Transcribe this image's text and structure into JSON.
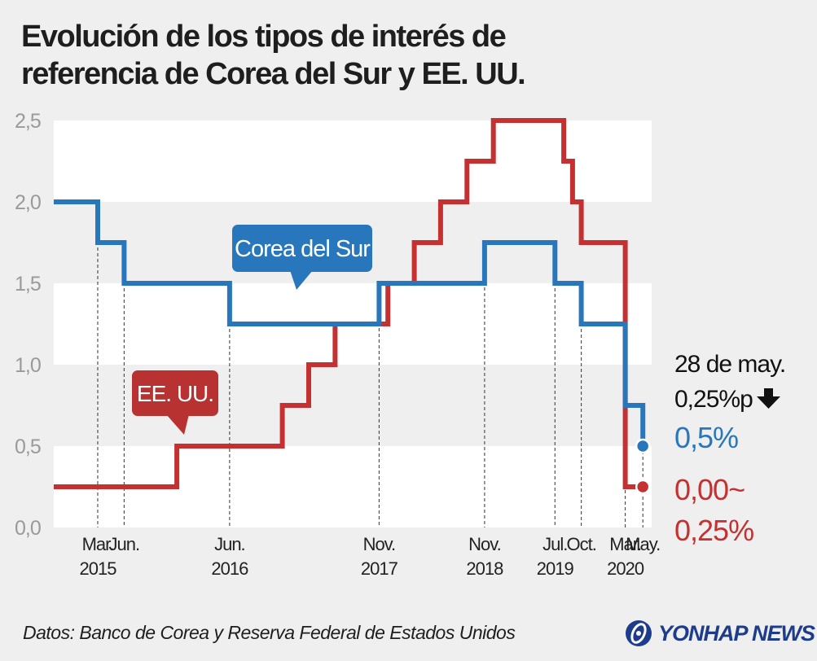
{
  "title_lines": [
    "Evolución de los tipos de interés de",
    "referencia de Corea del Sur y EE. UU."
  ],
  "source": "Datos: Banco de Corea y Reserva Federal de Estados Unidos",
  "logo_text": "YONHAP NEWS",
  "colors": {
    "korea": "#2877bd",
    "usa": "#c53030",
    "band": "#ffffff",
    "background": "#efefef",
    "axis_text": "#9a9a9a"
  },
  "chart_data": {
    "type": "line",
    "step": true,
    "x_range": [
      "2014-10",
      "2020-06"
    ],
    "ylim": [
      0,
      2.5
    ],
    "y_ticks": [
      {
        "value": 0,
        "label": "0,0"
      },
      {
        "value": 0.5,
        "label": "0,5"
      },
      {
        "value": 1.0,
        "label": "1,0"
      },
      {
        "value": 1.5,
        "label": "1,5"
      },
      {
        "value": 2.0,
        "label": "2,0"
      },
      {
        "value": 2.5,
        "label": "2,5"
      }
    ],
    "x_ticks": [
      {
        "date": "2015-03",
        "month": "Mar.",
        "year": "2015"
      },
      {
        "date": "2015-06",
        "month": "Jun.",
        "year": ""
      },
      {
        "date": "2016-06",
        "month": "Jun.",
        "year": "2016"
      },
      {
        "date": "2017-11",
        "month": "Nov.",
        "year": "2017"
      },
      {
        "date": "2018-11",
        "month": "Nov.",
        "year": "2018"
      },
      {
        "date": "2019-07",
        "month": "Jul.",
        "year": "2019"
      },
      {
        "date": "2019-10",
        "month": "Oct.",
        "year": ""
      },
      {
        "date": "2020-03",
        "month": "Mar.",
        "year": "2020"
      },
      {
        "date": "2020-05",
        "month": "May.",
        "year": ""
      }
    ],
    "series": [
      {
        "name": "Corea del Sur",
        "color": "#2877bd",
        "points": [
          [
            "2014-10",
            2.0
          ],
          [
            "2015-03",
            1.75
          ],
          [
            "2015-06",
            1.5
          ],
          [
            "2016-06",
            1.25
          ],
          [
            "2017-11",
            1.5
          ],
          [
            "2018-11",
            1.75
          ],
          [
            "2019-07",
            1.5
          ],
          [
            "2019-10",
            1.25
          ],
          [
            "2020-03",
            0.75
          ],
          [
            "2020-05",
            0.5
          ]
        ]
      },
      {
        "name": "EE. UU.",
        "color": "#c53030",
        "points": [
          [
            "2014-10",
            0.25
          ],
          [
            "2015-12",
            0.5
          ],
          [
            "2016-12",
            0.75
          ],
          [
            "2017-03",
            1.0
          ],
          [
            "2017-06",
            1.25
          ],
          [
            "2017-12",
            1.5
          ],
          [
            "2018-03",
            1.75
          ],
          [
            "2018-06",
            2.0
          ],
          [
            "2018-09",
            2.25
          ],
          [
            "2018-12",
            2.5
          ],
          [
            "2019-08",
            2.25
          ],
          [
            "2019-09",
            2.0
          ],
          [
            "2019-10",
            1.75
          ],
          [
            "2020-03",
            0.25
          ]
        ]
      }
    ],
    "series_labels": [
      {
        "text": "Corea del Sur",
        "series": 0
      },
      {
        "text": "EE. UU.",
        "series": 1
      }
    ],
    "annotation": {
      "date_text": "28 de may.",
      "change_text": "0,25%p",
      "change_direction": "down",
      "korea_value": "0,5%",
      "usa_value_line1": "0,00~",
      "usa_value_line2": "0,25%"
    }
  }
}
